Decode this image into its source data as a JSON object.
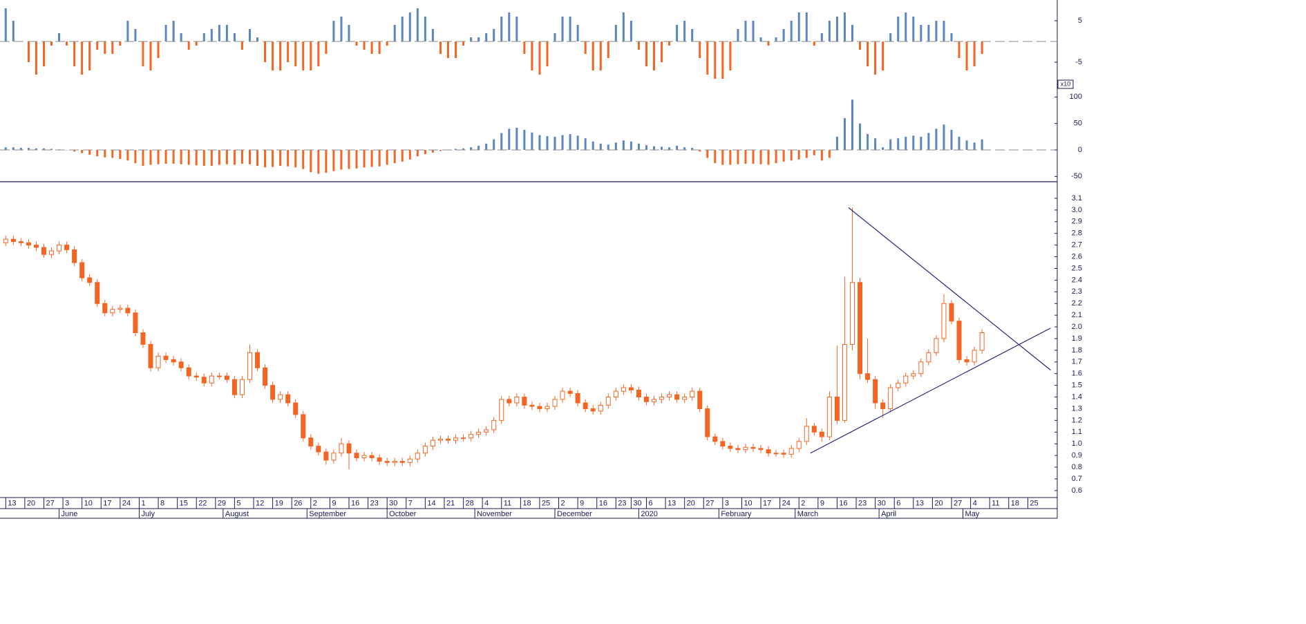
{
  "chart_data": {
    "type": "candlestick",
    "color": "#f26522",
    "x": [
      0,
      2,
      4,
      6,
      8,
      10,
      12,
      14,
      16,
      18,
      20,
      22,
      24,
      26,
      28,
      30,
      32,
      34,
      36,
      38,
      40,
      42,
      44,
      46,
      48,
      50,
      52,
      54,
      56,
      58,
      60,
      62,
      64,
      66,
      68,
      70,
      72,
      74,
      76,
      78,
      80,
      82,
      84,
      86,
      88,
      90,
      92,
      94,
      96,
      98,
      100,
      102,
      104,
      106,
      108,
      110,
      112,
      114,
      116,
      118,
      120,
      122,
      124,
      126,
      128,
      130,
      132,
      134,
      136,
      138,
      140,
      142,
      144,
      146,
      148,
      150,
      152,
      154,
      156,
      158,
      160,
      162,
      164,
      166,
      168,
      170,
      172,
      174,
      176,
      178,
      180,
      182,
      184,
      186,
      188,
      190,
      192,
      194,
      196,
      198,
      200,
      202,
      204,
      206,
      208,
      210,
      212,
      214,
      216,
      218,
      220,
      222,
      224,
      226,
      228,
      230,
      232,
      234,
      236,
      238,
      240,
      242,
      244,
      246,
      248,
      250,
      252,
      254,
      256
    ],
    "open": [
      2.72,
      2.75,
      2.73,
      2.72,
      2.7,
      2.68,
      2.62,
      2.65,
      2.7,
      2.66,
      2.55,
      2.42,
      2.38,
      2.2,
      2.12,
      2.15,
      2.16,
      2.12,
      1.95,
      1.85,
      1.65,
      1.75,
      1.72,
      1.7,
      1.65,
      1.58,
      1.57,
      1.52,
      1.58,
      1.58,
      1.55,
      1.42,
      1.55,
      1.78,
      1.65,
      1.5,
      1.38,
      1.42,
      1.35,
      1.25,
      1.05,
      0.98,
      0.93,
      0.86,
      0.92,
      1.0,
      0.92,
      0.88,
      0.9,
      0.88,
      0.85,
      0.84,
      0.85,
      0.84,
      0.87,
      0.92,
      0.98,
      1.03,
      1.04,
      1.03,
      1.05,
      1.05,
      1.08,
      1.1,
      1.12,
      1.2,
      1.38,
      1.35,
      1.4,
      1.33,
      1.32,
      1.3,
      1.32,
      1.38,
      1.45,
      1.43,
      1.35,
      1.3,
      1.28,
      1.33,
      1.4,
      1.45,
      1.48,
      1.46,
      1.4,
      1.36,
      1.38,
      1.4,
      1.42,
      1.38,
      1.4,
      1.45,
      1.3,
      1.06,
      1.02,
      0.98,
      0.96,
      0.95,
      0.97,
      0.96,
      0.95,
      0.92,
      0.92,
      0.91,
      0.96,
      1.02,
      1.15,
      1.1,
      1.06,
      1.4,
      1.2,
      1.85,
      2.38,
      1.6,
      1.55,
      1.35,
      1.3,
      1.48,
      1.52,
      1.58,
      1.6,
      1.7,
      1.78,
      1.9,
      2.2,
      2.05,
      1.72,
      1.7,
      1.8
    ],
    "high": [
      2.78,
      2.78,
      2.76,
      2.75,
      2.73,
      2.71,
      2.68,
      2.73,
      2.73,
      2.69,
      2.58,
      2.45,
      2.41,
      2.23,
      2.18,
      2.19,
      2.19,
      2.15,
      1.98,
      1.88,
      1.78,
      1.78,
      1.75,
      1.73,
      1.68,
      1.61,
      1.6,
      1.61,
      1.61,
      1.61,
      1.58,
      1.58,
      1.85,
      1.81,
      1.68,
      1.53,
      1.45,
      1.45,
      1.38,
      1.28,
      1.08,
      1.01,
      0.96,
      0.95,
      1.05,
      1.03,
      0.95,
      0.93,
      0.93,
      0.91,
      0.88,
      0.88,
      0.88,
      0.9,
      0.95,
      1.01,
      1.06,
      1.07,
      1.07,
      1.08,
      1.08,
      1.11,
      1.13,
      1.15,
      1.23,
      1.41,
      1.41,
      1.43,
      1.43,
      1.36,
      1.35,
      1.35,
      1.41,
      1.48,
      1.48,
      1.46,
      1.38,
      1.33,
      1.36,
      1.43,
      1.48,
      1.51,
      1.51,
      1.49,
      1.43,
      1.41,
      1.43,
      1.45,
      1.45,
      1.43,
      1.48,
      1.48,
      1.33,
      1.09,
      1.05,
      1.01,
      0.99,
      1.0,
      1.0,
      0.99,
      0.98,
      0.95,
      0.95,
      0.99,
      1.05,
      1.22,
      1.18,
      1.13,
      1.45,
      1.84,
      2.43,
      3.02,
      2.42,
      1.9,
      1.58,
      1.38,
      1.51,
      1.55,
      1.61,
      1.63,
      1.73,
      1.81,
      1.93,
      2.28,
      2.23,
      2.08,
      1.75,
      1.83,
      1.98
    ],
    "low": [
      2.69,
      2.7,
      2.69,
      2.67,
      2.65,
      2.59,
      2.59,
      2.62,
      2.63,
      2.52,
      2.39,
      2.35,
      2.17,
      2.09,
      2.09,
      2.12,
      2.09,
      1.92,
      1.82,
      1.62,
      1.62,
      1.69,
      1.67,
      1.62,
      1.55,
      1.54,
      1.49,
      1.49,
      1.55,
      1.52,
      1.39,
      1.39,
      1.52,
      1.62,
      1.47,
      1.35,
      1.35,
      1.32,
      1.22,
      1.02,
      0.95,
      0.9,
      0.82,
      0.83,
      0.89,
      0.78,
      0.85,
      0.85,
      0.85,
      0.82,
      0.81,
      0.81,
      0.81,
      0.81,
      0.84,
      0.89,
      0.95,
      1.0,
      1.0,
      1.0,
      1.02,
      1.02,
      1.05,
      1.07,
      1.09,
      1.17,
      1.32,
      1.32,
      1.3,
      1.29,
      1.27,
      1.27,
      1.29,
      1.35,
      1.4,
      1.32,
      1.27,
      1.25,
      1.25,
      1.3,
      1.37,
      1.42,
      1.43,
      1.37,
      1.33,
      1.33,
      1.35,
      1.37,
      1.35,
      1.35,
      1.37,
      1.27,
      1.03,
      0.99,
      0.95,
      0.93,
      0.92,
      0.92,
      0.93,
      0.92,
      0.89,
      0.89,
      0.88,
      0.88,
      0.93,
      0.99,
      1.07,
      1.02,
      1.03,
      1.17,
      1.18,
      1.8,
      1.55,
      1.52,
      1.3,
      1.22,
      1.27,
      1.45,
      1.49,
      1.55,
      1.57,
      1.67,
      1.75,
      1.87,
      2.02,
      1.69,
      1.67,
      1.67,
      1.77
    ],
    "close": [
      2.75,
      2.73,
      2.72,
      2.7,
      2.68,
      2.62,
      2.65,
      2.7,
      2.66,
      2.55,
      2.42,
      2.38,
      2.2,
      2.12,
      2.15,
      2.16,
      2.12,
      1.95,
      1.85,
      1.65,
      1.75,
      1.72,
      1.7,
      1.65,
      1.58,
      1.57,
      1.52,
      1.58,
      1.58,
      1.55,
      1.42,
      1.55,
      1.78,
      1.65,
      1.5,
      1.38,
      1.42,
      1.35,
      1.25,
      1.05,
      0.98,
      0.93,
      0.86,
      0.92,
      1.0,
      0.92,
      0.88,
      0.9,
      0.88,
      0.85,
      0.84,
      0.85,
      0.84,
      0.87,
      0.92,
      0.98,
      1.03,
      1.04,
      1.03,
      1.05,
      1.05,
      1.08,
      1.1,
      1.12,
      1.2,
      1.38,
      1.35,
      1.4,
      1.33,
      1.32,
      1.3,
      1.32,
      1.38,
      1.45,
      1.43,
      1.35,
      1.3,
      1.28,
      1.33,
      1.4,
      1.45,
      1.48,
      1.46,
      1.4,
      1.36,
      1.38,
      1.4,
      1.42,
      1.38,
      1.4,
      1.45,
      1.3,
      1.06,
      1.02,
      0.98,
      0.96,
      0.95,
      0.97,
      0.96,
      0.95,
      0.92,
      0.92,
      0.91,
      0.96,
      1.02,
      1.15,
      1.1,
      1.06,
      1.4,
      1.2,
      1.85,
      2.38,
      1.6,
      1.55,
      1.35,
      1.3,
      1.48,
      1.52,
      1.58,
      1.6,
      1.7,
      1.78,
      1.9,
      2.2,
      2.05,
      1.72,
      1.7,
      1.8,
      1.95
    ],
    "ylim": [
      0.54,
      3.23
    ],
    "yticks": [
      0.6,
      0.7,
      0.8,
      0.9,
      {
        "value": 1,
        "label": "1.0"
      },
      1.1,
      1.2,
      1.3,
      1.4,
      1.5,
      1.6,
      1.7,
      1.8,
      1.9,
      {
        "value": 2,
        "label": "2.0"
      },
      2.1,
      2.2,
      2.3,
      2.4,
      2.5,
      2.6,
      2.7,
      2.8,
      2.9,
      {
        "value": 3,
        "label": "3.0"
      },
      3.1
    ],
    "xlim": [
      -1.5,
      275
    ],
    "xticks": [
      {
        "value": 0,
        "label": "13"
      },
      {
        "value": 5,
        "label": "20"
      },
      {
        "value": 10,
        "label": "27"
      },
      {
        "value": 15,
        "label": "3"
      },
      {
        "value": 20,
        "label": "10"
      },
      {
        "value": 25,
        "label": "17"
      },
      {
        "value": 30,
        "label": "24"
      },
      {
        "value": 35,
        "label": "1"
      },
      {
        "value": 40,
        "label": "8"
      },
      {
        "value": 45,
        "label": "15"
      },
      {
        "value": 50,
        "label": "22"
      },
      {
        "value": 55,
        "label": "29"
      },
      {
        "value": 60,
        "label": "5"
      },
      {
        "value": 65,
        "label": "12"
      },
      {
        "value": 70,
        "label": "19"
      },
      {
        "value": 75,
        "label": "26"
      },
      {
        "value": 80,
        "label": "2"
      },
      {
        "value": 85,
        "label": "9"
      },
      {
        "value": 90,
        "label": "16"
      },
      {
        "value": 95,
        "label": "23"
      },
      {
        "value": 100,
        "label": "30"
      },
      {
        "value": 105,
        "label": "7"
      },
      {
        "value": 110,
        "label": "14"
      },
      {
        "value": 115,
        "label": "21"
      },
      {
        "value": 120,
        "label": "28"
      },
      {
        "value": 125,
        "label": "4"
      },
      {
        "value": 130,
        "label": "11"
      },
      {
        "value": 135,
        "label": "18"
      },
      {
        "value": 140,
        "label": "25"
      },
      {
        "value": 145,
        "label": "2"
      },
      {
        "value": 150,
        "label": "9"
      },
      {
        "value": 155,
        "label": "16"
      },
      {
        "value": 160,
        "label": "23"
      },
      {
        "value": 164,
        "label": "30"
      },
      {
        "value": 168,
        "label": "6"
      },
      {
        "value": 173,
        "label": "13"
      },
      {
        "value": 178,
        "label": "20"
      },
      {
        "value": 183,
        "label": "27"
      },
      {
        "value": 188,
        "label": "3"
      },
      {
        "value": 193,
        "label": "10"
      },
      {
        "value": 198,
        "label": "17"
      },
      {
        "value": 203,
        "label": "24"
      },
      {
        "value": 208,
        "label": "2"
      },
      {
        "value": 213,
        "label": "9"
      },
      {
        "value": 218,
        "label": "16"
      },
      {
        "value": 223,
        "label": "23"
      },
      {
        "value": 228,
        "label": "30"
      },
      {
        "value": 233,
        "label": "6"
      },
      {
        "value": 238,
        "label": "13"
      },
      {
        "value": 243,
        "label": "20"
      },
      {
        "value": 248,
        "label": "27"
      },
      {
        "value": 253,
        "label": "4"
      },
      {
        "value": 258,
        "label": "11"
      },
      {
        "value": 263,
        "label": "18"
      },
      {
        "value": 268,
        "label": "25"
      }
    ],
    "month_ticks": [
      {
        "value": 14,
        "label": "June"
      },
      {
        "value": 35,
        "label": "July"
      },
      {
        "value": 57,
        "label": "August"
      },
      {
        "value": 79,
        "label": "September"
      },
      {
        "value": 100,
        "label": "October"
      },
      {
        "value": 123,
        "label": "November"
      },
      {
        "value": 144,
        "label": "December"
      },
      {
        "value": 166,
        "label": "2020"
      },
      {
        "value": 187,
        "label": "February"
      },
      {
        "value": 207,
        "label": "March"
      },
      {
        "value": 229,
        "label": "April"
      },
      {
        "value": 251,
        "label": "May"
      }
    ],
    "trendlines": {
      "color": "#26267a",
      "lines": [
        {
          "x": [
            221,
            274
          ],
          "y": [
            3.02,
            1.63
          ]
        },
        {
          "x": [
            211,
            274
          ],
          "y": [
            0.92,
            1.99
          ]
        }
      ]
    },
    "indicators": [
      {
        "type": "bar",
        "positive_color": "#5b86c0",
        "negative_color": "#f26522",
        "baseline": 0,
        "ylim": [
          -10,
          10
        ],
        "yticks": [
          5,
          -5
        ],
        "values": [
          8,
          5,
          0,
          -5,
          -8,
          -6,
          -1,
          2,
          -1,
          -6,
          -8,
          -7,
          -2,
          -3,
          -3,
          -1,
          5,
          3,
          -6,
          -7,
          -4,
          4,
          5,
          2,
          -2,
          -1,
          2,
          3,
          4,
          4,
          2,
          -2,
          3,
          1,
          -5,
          -7,
          -7,
          -5,
          -6,
          -7,
          -7,
          -6,
          -3,
          5,
          6,
          4,
          -1,
          -2,
          -3,
          -3,
          -1,
          4,
          6,
          7,
          8,
          6,
          3,
          -3,
          -4,
          -4,
          -1,
          1,
          1,
          2,
          3,
          6,
          7,
          6,
          -3,
          -7,
          -8,
          -6,
          2,
          6,
          6,
          4,
          -3,
          -7,
          -7,
          -4,
          4,
          7,
          5,
          -2,
          -6,
          -7,
          -5,
          -1,
          4,
          5,
          3,
          -4,
          -8,
          -9,
          -9,
          -7,
          3,
          5,
          5,
          1,
          -1,
          1,
          3,
          5,
          7,
          7,
          -1,
          2,
          5,
          6,
          7,
          4,
          -2,
          -6,
          -8,
          -7,
          2,
          6,
          7,
          6,
          4,
          4,
          5,
          5,
          2,
          -4,
          -7,
          -6,
          -3
        ]
      },
      {
        "type": "bar",
        "positive_color": "#5b86c0",
        "negative_color": "#f26522",
        "baseline": 0,
        "ylim": [
          -60,
          120
        ],
        "yticks": [
          100,
          50,
          0,
          -50
        ],
        "scale_label": "x10",
        "values": [
          5,
          5,
          4,
          4,
          3,
          3,
          2,
          1,
          0,
          -3,
          -6,
          -9,
          -12,
          -14,
          -15,
          -17,
          -20,
          -25,
          -30,
          -28,
          -27,
          -26,
          -26,
          -27,
          -28,
          -29,
          -30,
          -30,
          -28,
          -27,
          -28,
          -26,
          -27,
          -30,
          -33,
          -32,
          -30,
          -31,
          -33,
          -36,
          -42,
          -45,
          -43,
          -40,
          -37,
          -36,
          -35,
          -33,
          -32,
          -31,
          -28,
          -25,
          -22,
          -18,
          -12,
          -8,
          -5,
          -2,
          0,
          2,
          3,
          5,
          8,
          12,
          20,
          32,
          40,
          42,
          38,
          33,
          28,
          26,
          25,
          28,
          30,
          27,
          22,
          16,
          12,
          10,
          14,
          18,
          16,
          12,
          9,
          7,
          6,
          5,
          8,
          5,
          4,
          -3,
          -15,
          -25,
          -28,
          -28,
          -27,
          -26,
          -26,
          -27,
          -28,
          -25,
          -22,
          -20,
          -18,
          -15,
          -10,
          -20,
          -15,
          25,
          60,
          95,
          50,
          30,
          22,
          5,
          20,
          22,
          25,
          27,
          25,
          32,
          40,
          48,
          38,
          25,
          18,
          14,
          20
        ]
      }
    ]
  }
}
